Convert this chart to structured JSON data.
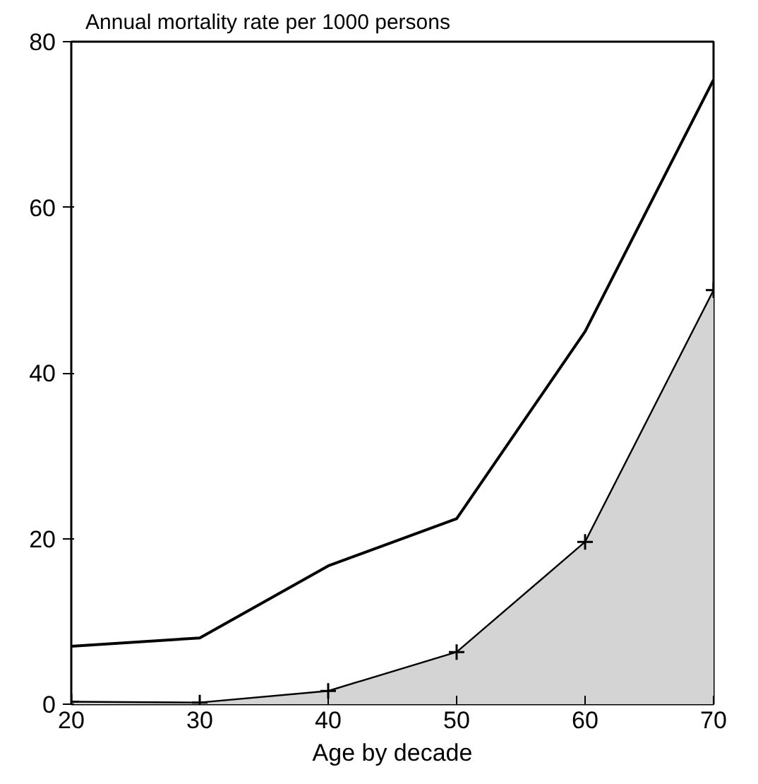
{
  "chart_data": {
    "type": "line",
    "ylabel": "Annual mortality rate per 1000 persons",
    "xlabel": "Age by decade",
    "x": [
      20,
      30,
      40,
      50,
      60,
      70
    ],
    "series": [
      {
        "color": "#000000",
        "values": [
          7,
          8,
          16.7,
          22.4,
          45,
          75.4
        ],
        "marker": "none"
      },
      {
        "type": "area",
        "color": "#d4d4d4",
        "values": [
          0.3,
          0.2,
          1.6,
          6.3,
          19.6,
          50
        ],
        "marker": "cross"
      }
    ],
    "xlim": [
      20,
      70
    ],
    "xticks": [
      20,
      30,
      40,
      50,
      60,
      70
    ],
    "ylim": [
      0,
      80
    ],
    "yticks": [
      0,
      20,
      40,
      60,
      80
    ],
    "grid": false,
    "line_style": "solid"
  }
}
